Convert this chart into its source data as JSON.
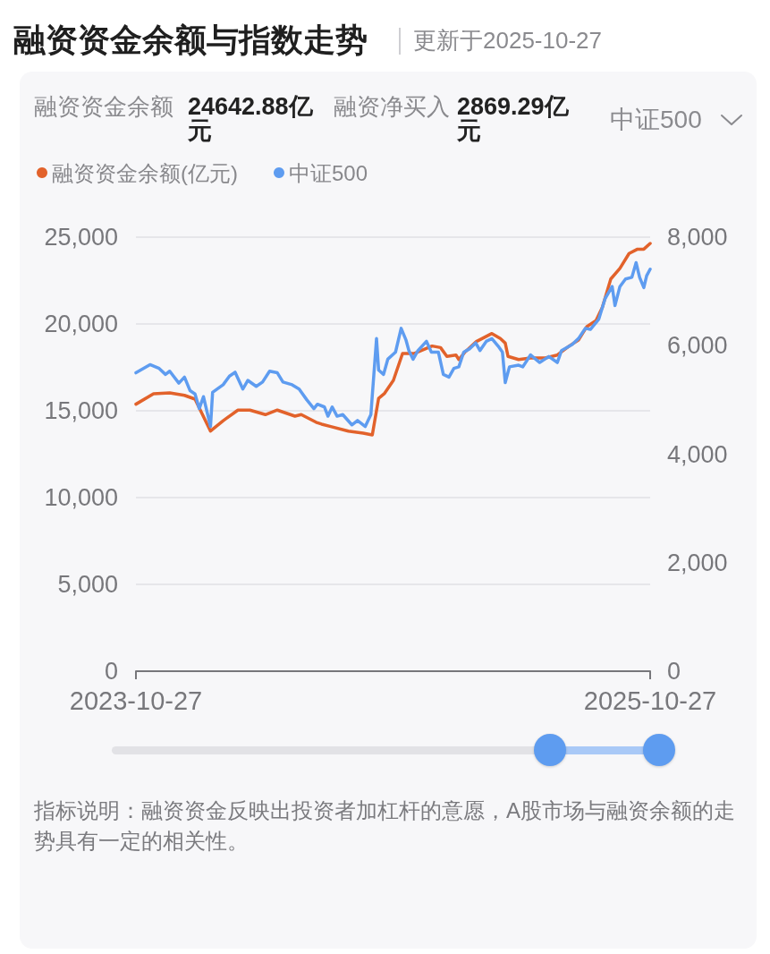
{
  "chart_data": {
    "type": "line",
    "title": "融资资金余额与指数走势",
    "subtitle": "更新于2025-10-27",
    "annotations": [
      "融资资金余额",
      "24642.88亿元",
      "融资净买入",
      "2869.29亿元",
      "中证500",
      "指标说明：融资资金反映出投资者加杠杆的意愿，A股市场与融资余额的走势具有一定的相关性。"
    ],
    "legend": "top left",
    "grid": "y",
    "line_style": "solid",
    "xlim": [
      "2023-10-27",
      "2025-10-27"
    ],
    "xticks": [
      "2023-10-27",
      "2025-10-27"
    ],
    "ylim": [
      0,
      25000
    ],
    "yticks": [
      0,
      {
        "value": 5000,
        "label": "5,000"
      },
      {
        "value": 10000,
        "label": "10,000"
      },
      {
        "value": 15000,
        "label": "15,000"
      },
      {
        "value": 20000,
        "label": "20,000"
      },
      {
        "value": 25000,
        "label": "25,000"
      }
    ],
    "y2lim": [
      0,
      8000
    ],
    "y2ticks": [
      0,
      {
        "value": 2000,
        "label": "2,000"
      },
      {
        "value": 4000,
        "label": "4,000"
      },
      {
        "value": 6000,
        "label": "6,000"
      },
      {
        "value": 8000,
        "label": "8,000"
      }
    ],
    "series": [
      {
        "name": "融资资金余额(亿元)",
        "color": "#e2622b",
        "x": [
          "2023-10-27",
          "2023-11-21",
          "2023-12-14",
          "2024-01-04",
          "2024-01-19",
          "2024-02-10",
          "2024-02-28",
          "2024-03-20",
          "2024-04-06",
          "2024-04-28",
          "2024-05-15",
          "2024-06-09",
          "2024-06-18",
          "2024-07-09",
          "2024-07-17",
          "2024-07-30",
          "2024-08-24",
          "2024-09-14",
          "2024-09-27",
          "2024-10-06",
          "2024-10-14",
          "2024-10-27",
          "2024-11-09",
          "2024-11-26",
          "2024-12-21",
          "2025-01-02",
          "2025-01-11",
          "2025-01-24",
          "2025-01-28",
          "2025-02-06",
          "2025-02-22",
          "2025-03-16",
          "2025-03-28",
          "2025-04-04",
          "2025-04-08",
          "2025-04-23",
          "2025-05-10",
          "2025-05-31",
          "2025-06-17",
          "2025-07-04",
          "2025-07-17",
          "2025-07-29",
          "2025-08-11",
          "2025-08-20",
          "2025-09-01",
          "2025-09-14",
          "2025-09-27",
          "2025-10-09",
          "2025-10-18",
          "2025-10-27"
        ],
        "values": [
          15380,
          15980,
          16030,
          15890,
          15670,
          13830,
          14430,
          15040,
          15040,
          14780,
          15040,
          14690,
          14780,
          14340,
          14230,
          14090,
          13830,
          13710,
          13610,
          15720,
          15980,
          16750,
          18300,
          18300,
          18730,
          18640,
          18130,
          18210,
          17950,
          18390,
          18990,
          19450,
          19160,
          18900,
          18130,
          17950,
          18040,
          18040,
          18210,
          18730,
          19070,
          19850,
          20190,
          20960,
          22590,
          23200,
          24060,
          24310,
          24310,
          24640
        ]
      },
      {
        "name": "中证500",
        "color": "#5e9cf0",
        "axis": "y2",
        "x": [
          "2023-10-27",
          "2023-11-16",
          "2023-11-29",
          "2023-12-08",
          "2023-12-14",
          "2023-12-27",
          "2024-01-04",
          "2024-01-12",
          "2024-01-19",
          "2024-01-25",
          "2024-01-31",
          "2024-02-10",
          "2024-02-13",
          "2024-02-28",
          "2024-03-08",
          "2024-03-16",
          "2024-03-27",
          "2024-04-03",
          "2024-04-15",
          "2024-04-24",
          "2024-05-04",
          "2024-05-15",
          "2024-05-23",
          "2024-06-05",
          "2024-06-15",
          "2024-06-26",
          "2024-07-06",
          "2024-07-11",
          "2024-07-21",
          "2024-07-26",
          "2024-08-01",
          "2024-08-08",
          "2024-08-16",
          "2024-08-29",
          "2024-09-06",
          "2024-09-17",
          "2024-09-25",
          "2024-10-03",
          "2024-10-06",
          "2024-10-13",
          "2024-10-19",
          "2024-10-30",
          "2024-11-07",
          "2024-11-14",
          "2024-11-18",
          "2024-11-24",
          "2024-12-01",
          "2024-12-13",
          "2024-12-20",
          "2024-12-30",
          "2025-01-06",
          "2025-01-14",
          "2025-01-21",
          "2025-01-28",
          "2025-02-04",
          "2025-02-12",
          "2025-02-21",
          "2025-02-27",
          "2025-03-08",
          "2025-03-16",
          "2025-03-25",
          "2025-03-31",
          "2025-04-04",
          "2025-04-10",
          "2025-04-23",
          "2025-04-29",
          "2025-05-10",
          "2025-05-23",
          "2025-06-05",
          "2025-06-17",
          "2025-06-23",
          "2025-07-08",
          "2025-07-17",
          "2025-07-27",
          "2025-08-03",
          "2025-08-15",
          "2025-08-24",
          "2025-09-03",
          "2025-09-07",
          "2025-09-14",
          "2025-09-22",
          "2025-10-01",
          "2025-10-07",
          "2025-10-12",
          "2025-10-18",
          "2025-10-22",
          "2025-10-27"
        ],
        "values": [
          5500,
          5650,
          5580,
          5470,
          5530,
          5310,
          5420,
          5170,
          5110,
          4840,
          5060,
          4510,
          5140,
          5280,
          5440,
          5510,
          5200,
          5360,
          5250,
          5330,
          5530,
          5500,
          5330,
          5280,
          5200,
          5000,
          4840,
          4920,
          4870,
          4700,
          4870,
          4700,
          4730,
          4540,
          4620,
          4510,
          4730,
          6130,
          5550,
          5470,
          5750,
          5880,
          6320,
          6100,
          5910,
          5750,
          5910,
          6080,
          5880,
          5880,
          5470,
          5420,
          5580,
          5610,
          5880,
          5940,
          6050,
          5910,
          6080,
          6130,
          5990,
          5880,
          5320,
          5610,
          5640,
          5610,
          5830,
          5690,
          5800,
          5690,
          5910,
          6020,
          6130,
          6320,
          6300,
          6490,
          6870,
          7090,
          6740,
          7090,
          7230,
          7260,
          7530,
          7260,
          7070,
          7290,
          7410
        ]
      }
    ]
  }
}
